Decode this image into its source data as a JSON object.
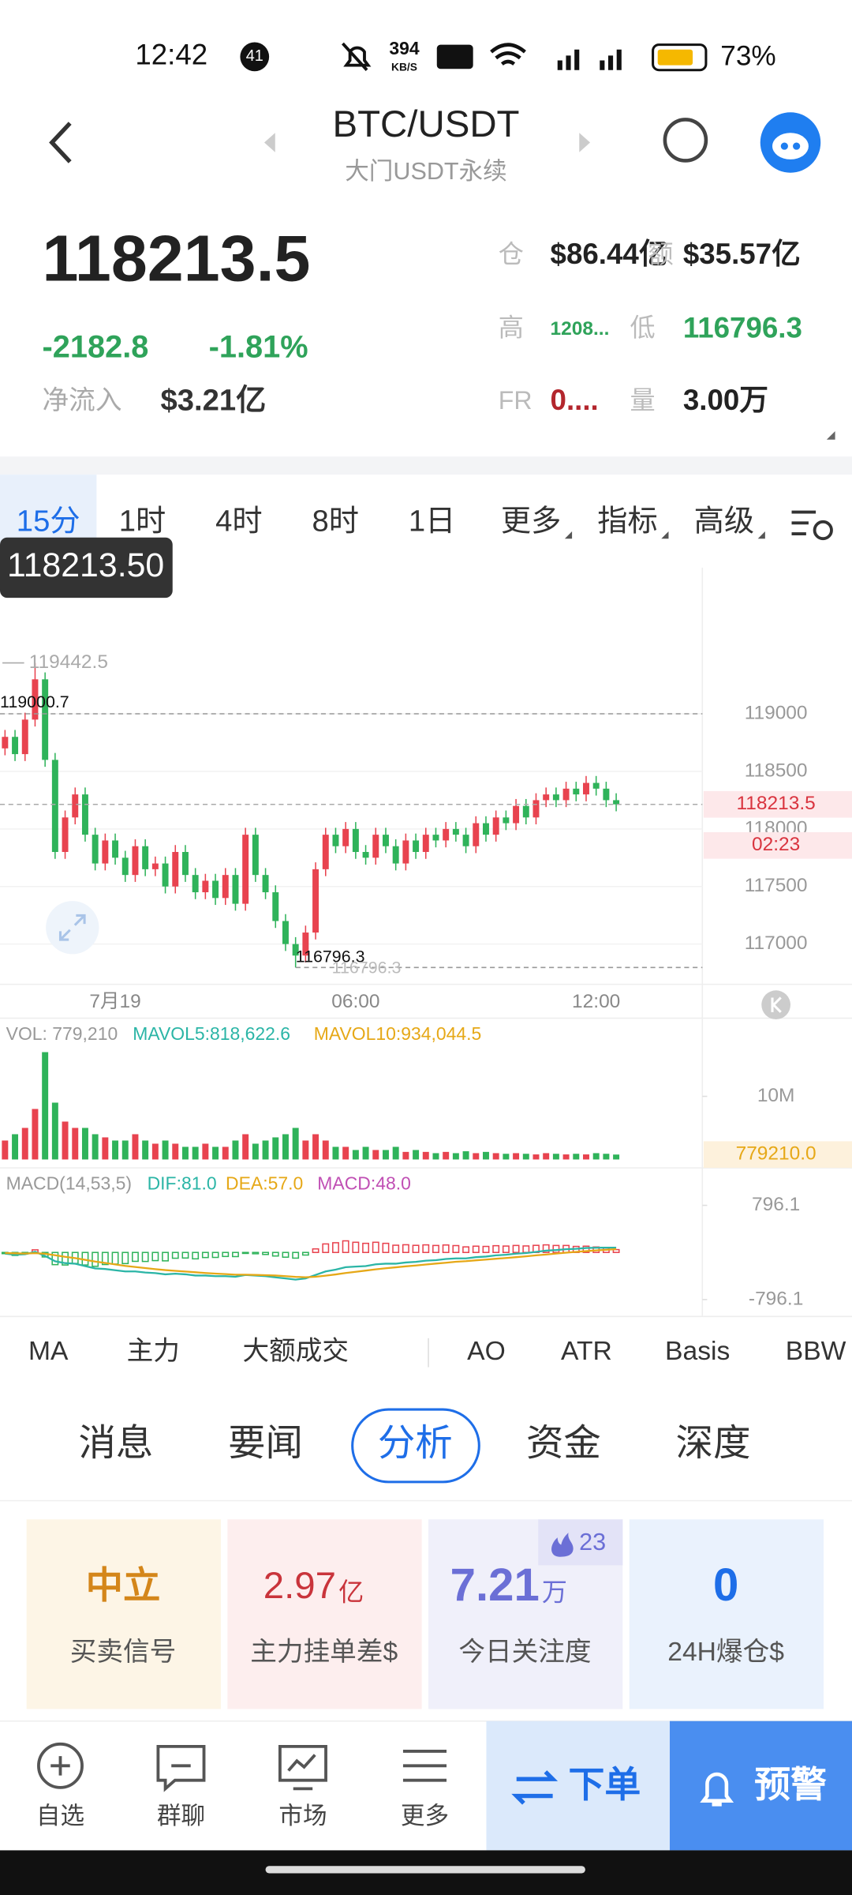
{
  "status": {
    "time": "12:42",
    "badge": "41",
    "speed": "394",
    "speed_unit": "KB/S",
    "battery": "73%"
  },
  "header": {
    "pair": "BTC/USDT",
    "subtitle": "大门USDT永续"
  },
  "quote": {
    "price": "118213.5",
    "change": "-2182.8",
    "change_pct": "-1.81%",
    "netflow_label": "净流入",
    "netflow": "$3.21亿",
    "stats": [
      {
        "label": "仓",
        "value": "$86.44亿"
      },
      {
        "label": "额",
        "value": "$35.57亿"
      },
      {
        "label": "高",
        "value": "1208..."
      },
      {
        "label": "低",
        "value": "116796.3"
      },
      {
        "label": "FR",
        "value": "0...."
      },
      {
        "label": "量",
        "value": "3.00万"
      }
    ]
  },
  "tabs": [
    "15分",
    "1时",
    "4时",
    "8时",
    "1日",
    "更多",
    "指标",
    "高级"
  ],
  "crosshair_label": "118213.50",
  "chart_data": {
    "type": "candlestick",
    "up_color": "#e8434f",
    "down_color": "#2fb35a",
    "ylim": [
      116650,
      120270
    ],
    "yticks": [
      117000,
      117500,
      118000,
      118500,
      119000
    ],
    "xlim": [
      -0.5,
      69.6
    ],
    "xticks": [
      {
        "value": 11,
        "label": "7月19"
      },
      {
        "value": 35,
        "label": "06:00"
      },
      {
        "value": 59,
        "label": "12:00"
      }
    ],
    "last_price": 118213.5,
    "countdown": "02:23",
    "high": 119442.5,
    "marker": 119000.7,
    "low": 116796.3,
    "candles": [
      [
        118700,
        118860,
        118640,
        118800
      ],
      [
        118800,
        118860,
        118590,
        118650
      ],
      [
        118650,
        119010,
        118590,
        118950
      ],
      [
        118950,
        119442.5,
        118890,
        119300
      ],
      [
        119300,
        119360,
        118540,
        118600
      ],
      [
        118600,
        118660,
        117740,
        117800
      ],
      [
        117800,
        118160,
        117740,
        118100
      ],
      [
        118100,
        118360,
        118040,
        118300
      ],
      [
        118300,
        118360,
        117890,
        117950
      ],
      [
        117950,
        118010,
        117640,
        117700
      ],
      [
        117700,
        117960,
        117640,
        117900
      ],
      [
        117900,
        117960,
        117690,
        117750
      ],
      [
        117750,
        117810,
        117540,
        117600
      ],
      [
        117600,
        117910,
        117540,
        117850
      ],
      [
        117850,
        117910,
        117590,
        117650
      ],
      [
        117650,
        117760,
        117590,
        117700
      ],
      [
        117700,
        117760,
        117440,
        117500
      ],
      [
        117500,
        117860,
        117440,
        117800
      ],
      [
        117800,
        117860,
        117540,
        117600
      ],
      [
        117600,
        117660,
        117390,
        117450
      ],
      [
        117450,
        117610,
        117390,
        117550
      ],
      [
        117550,
        117610,
        117340,
        117400
      ],
      [
        117400,
        117660,
        117340,
        117600
      ],
      [
        117600,
        117660,
        117290,
        117350
      ],
      [
        117350,
        118010,
        117290,
        117950
      ],
      [
        117950,
        118010,
        117540,
        117600
      ],
      [
        117600,
        117660,
        117390,
        117450
      ],
      [
        117450,
        117510,
        117140,
        117200
      ],
      [
        117200,
        117260,
        116940,
        117000
      ],
      [
        117000,
        117060,
        116796.3,
        116900
      ],
      [
        116900,
        117160,
        116840,
        117100
      ],
      [
        117100,
        117710,
        117040,
        117650
      ],
      [
        117650,
        118010,
        117590,
        117950
      ],
      [
        117950,
        118010,
        117790,
        117850
      ],
      [
        117850,
        118060,
        117790,
        118000
      ],
      [
        118000,
        118060,
        117740,
        117800
      ],
      [
        117800,
        117860,
        117690,
        117750
      ],
      [
        117750,
        118010,
        117690,
        117950
      ],
      [
        117950,
        118010,
        117790,
        117850
      ],
      [
        117850,
        117910,
        117640,
        117700
      ],
      [
        117700,
        117960,
        117640,
        117900
      ],
      [
        117900,
        117960,
        117740,
        117800
      ],
      [
        117800,
        118010,
        117740,
        117950
      ],
      [
        117950,
        118010,
        117840,
        117900
      ],
      [
        117900,
        118060,
        117840,
        118000
      ],
      [
        118000,
        118060,
        117890,
        117950
      ],
      [
        117950,
        118010,
        117790,
        117850
      ],
      [
        117850,
        118110,
        117790,
        118050
      ],
      [
        118050,
        118110,
        117890,
        117950
      ],
      [
        117950,
        118160,
        117890,
        118100
      ],
      [
        118100,
        118160,
        117990,
        118050
      ],
      [
        118050,
        118260,
        117990,
        118200
      ],
      [
        118200,
        118260,
        118040,
        118100
      ],
      [
        118100,
        118310,
        118040,
        118250
      ],
      [
        118250,
        118360,
        118190,
        118300
      ],
      [
        118300,
        118360,
        118190,
        118250
      ],
      [
        118250,
        118410,
        118190,
        118350
      ],
      [
        118350,
        118410,
        118240,
        118300
      ],
      [
        118300,
        118460,
        118240,
        118400
      ],
      [
        118400,
        118460,
        118290,
        118350
      ],
      [
        118350,
        118410,
        118190,
        118250
      ],
      [
        118250,
        118310,
        118153.5,
        118213.5
      ]
    ],
    "volume": {
      "title": "VOL: 779,210",
      "ma5": "MAVOL5:818,622.6",
      "ma10": "MAVOL10:934,044.5",
      "ylim": [
        0,
        22000000
      ],
      "yticks": [
        {
          "value": 10000000,
          "label": "10M"
        }
      ],
      "current": {
        "value": 779210,
        "label": "779210.0"
      },
      "values": [
        3000000,
        4000000,
        5000000,
        8000000,
        17000000,
        9000000,
        6000000,
        5000000,
        5000000,
        4000000,
        3500000,
        3000000,
        3000000,
        4000000,
        3000000,
        2500000,
        3000000,
        2500000,
        2000000,
        2000000,
        2500000,
        2000000,
        2000000,
        3000000,
        4000000,
        2500000,
        3000000,
        3500000,
        4000000,
        5000000,
        3000000,
        4000000,
        3000000,
        2000000,
        2000000,
        1500000,
        2000000,
        1500000,
        1500000,
        2000000,
        1200000,
        1500000,
        1200000,
        1000000,
        1200000,
        1000000,
        1300000,
        1000000,
        1200000,
        1000000,
        900000,
        1000000,
        900000,
        800000,
        1000000,
        900000,
        800000,
        900000,
        800000,
        1000000,
        900000,
        779210
      ]
    },
    "macd": {
      "title": "MACD(14,53,5)",
      "dif_label": "DIF:81.0",
      "dea_label": "DEA:57.0",
      "macd_label": "MACD:48.0",
      "ylim": [
        -1082,
        1408
      ],
      "yticks": [
        -796.1,
        796.1
      ],
      "dif": {
        "color": "#2bb5a6",
        "values": [
          -20,
          -40,
          -30,
          10,
          -60,
          -150,
          -180,
          -190,
          -230,
          -270,
          -280,
          -300,
          -320,
          -320,
          -340,
          -350,
          -370,
          -360,
          -370,
          -390,
          -390,
          -400,
          -400,
          -410,
          -380,
          -390,
          -400,
          -420,
          -440,
          -460,
          -440,
          -380,
          -320,
          -290,
          -250,
          -240,
          -230,
          -200,
          -190,
          -190,
          -170,
          -160,
          -140,
          -130,
          -110,
          -100,
          -100,
          -80,
          -70,
          -50,
          -40,
          -20,
          -10,
          10,
          30,
          40,
          55,
          60,
          75,
          80,
          82,
          81
        ]
      },
      "dea": {
        "color": "#e6a817",
        "values": [
          -10,
          -15,
          -18,
          -12,
          -22,
          -47,
          -74,
          -97,
          -124,
          -153,
          -178,
          -202,
          -226,
          -245,
          -264,
          -281,
          -299,
          -311,
          -323,
          -336,
          -347,
          -358,
          -366,
          -375,
          -376,
          -379,
          -383,
          -390,
          -400,
          -412,
          -418,
          -410,
          -392,
          -372,
          -348,
          -326,
          -307,
          -286,
          -267,
          -251,
          -235,
          -220,
          -204,
          -189,
          -173,
          -158,
          -147,
          -133,
          -121,
          -107,
          -94,
          -79,
          -65,
          -50,
          -34,
          -19,
          -4,
          9,
          22,
          34,
          44,
          57
        ]
      },
      "hist": [
        -20,
        -50,
        -24,
        44,
        -76,
        -206,
        -212,
        -186,
        -212,
        -234,
        -204,
        -196,
        -188,
        -150,
        -152,
        -138,
        -142,
        -98,
        -94,
        -108,
        -86,
        -84,
        -68,
        -70,
        -8,
        -22,
        -34,
        -60,
        -80,
        -96,
        -44,
        60,
        144,
        164,
        196,
        172,
        154,
        172,
        154,
        122,
        130,
        120,
        128,
        118,
        126,
        116,
        94,
        106,
        102,
        114,
        108,
        118,
        110,
        120,
        128,
        118,
        118,
        102,
        106,
        92,
        76,
        48
      ]
    }
  },
  "indicators": [
    "MA",
    "主力",
    "大额成交",
    "AO",
    "ATR",
    "Basis",
    "BBW"
  ],
  "news_tabs": [
    "消息",
    "要闻",
    "分析",
    "资金",
    "深度"
  ],
  "cards": [
    {
      "value": "中立",
      "label": "买卖信号"
    },
    {
      "value": "2.97",
      "unit": "亿",
      "label": "主力挂单差$"
    },
    {
      "value": "7.21",
      "unit": "万",
      "label": "今日关注度",
      "badge": "23"
    },
    {
      "value": "0",
      "label": "24H爆仓$"
    }
  ],
  "nav": [
    "自选",
    "群聊",
    "市场",
    "更多"
  ],
  "actions": {
    "order": "下单",
    "alert": "预警"
  }
}
